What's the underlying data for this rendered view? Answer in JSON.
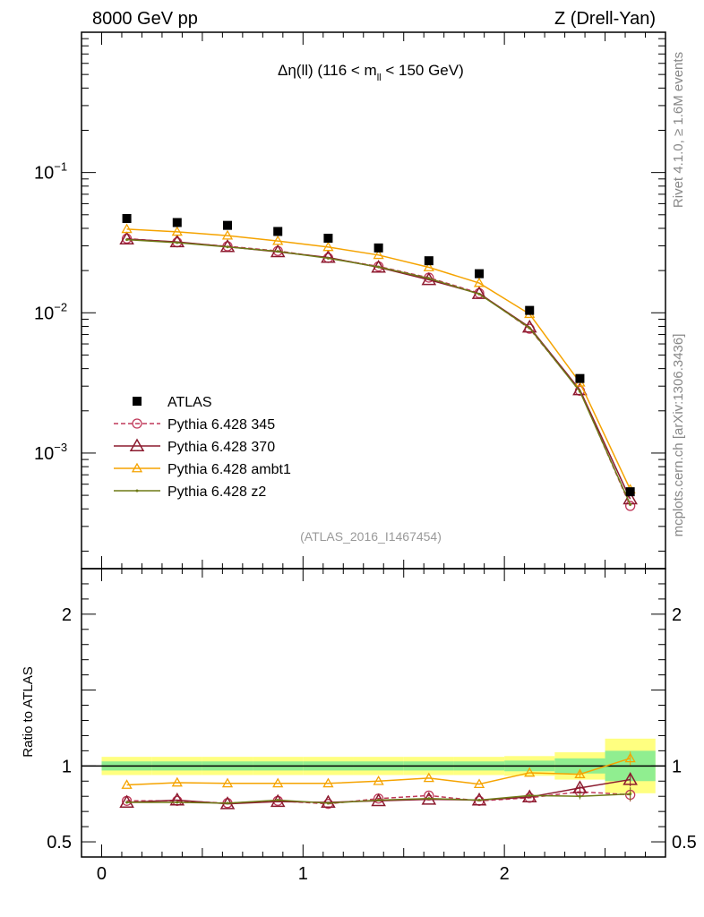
{
  "header": {
    "left": "8000 GeV pp",
    "right": "Z (Drell-Yan)"
  },
  "side_labels": {
    "top": "Rivet 4.1.0, ≥ 1.6M events",
    "bottom": "mcplots.cern.ch [arXiv:1306.3436]"
  },
  "chart_data": {
    "type": "line",
    "title_main": "Δη(ll) (116 < m",
    "title_sub": "ll",
    "title_end": " < 150 GeV)",
    "analysis_id": "(ATLAS_2016_I1467454)",
    "x": [
      0.125,
      0.375,
      0.625,
      0.875,
      1.125,
      1.375,
      1.625,
      1.875,
      2.125,
      2.375,
      2.625
    ],
    "xlim": [
      -0.1,
      2.8
    ],
    "x_ticks": [
      "0",
      "1",
      "2"
    ],
    "main_panel": {
      "yscale": "log",
      "ylim": [
        0.00015,
        1.0
      ],
      "y_tick_labels": [
        {
          "base": "10",
          "exp": "−1"
        },
        {
          "base": "10",
          "exp": "−2"
        },
        {
          "base": "10",
          "exp": "−3"
        }
      ]
    },
    "ratio_panel": {
      "ylabel": "Ratio to ATLAS",
      "ylim": [
        0.4,
        2.3
      ],
      "y_tick_labels": [
        "0.5",
        "1",
        "2"
      ]
    },
    "data": {
      "name": "ATLAS",
      "values": [
        0.047,
        0.044,
        0.042,
        0.038,
        0.034,
        0.029,
        0.0235,
        0.019,
        0.0104,
        0.0034,
        0.00053
      ],
      "band_stat": [
        0.03,
        0.03,
        0.03,
        0.03,
        0.03,
        0.03,
        0.03,
        0.03,
        0.035,
        0.05,
        0.1
      ],
      "band_total": [
        0.06,
        0.06,
        0.06,
        0.06,
        0.06,
        0.06,
        0.06,
        0.06,
        0.065,
        0.09,
        0.18
      ]
    },
    "series": [
      {
        "name": "Pythia 6.428 345",
        "color": "#c0395a",
        "dash": "5,3",
        "marker": "circle",
        "values": [
          0.0338,
          0.0318,
          0.0298,
          0.0276,
          0.0246,
          0.0214,
          0.0178,
          0.0138,
          0.0077,
          0.00278,
          0.00042
        ],
        "ratio": [
          0.77,
          0.77,
          0.755,
          0.77,
          0.75,
          0.785,
          0.805,
          0.77,
          0.79,
          0.83,
          0.81
        ]
      },
      {
        "name": "Pythia 6.428 370",
        "color": "#8b1a2e",
        "dash": "",
        "marker": "triangle-large",
        "values": [
          0.0335,
          0.032,
          0.0296,
          0.0272,
          0.0248,
          0.0211,
          0.0172,
          0.0137,
          0.0079,
          0.00282,
          0.00047
        ],
        "ratio": [
          0.76,
          0.775,
          0.75,
          0.765,
          0.76,
          0.77,
          0.78,
          0.775,
          0.795,
          0.855,
          0.91
        ]
      },
      {
        "name": "Pythia 6.428 ambt1",
        "color": "#f5a300",
        "dash": "",
        "marker": "triangle-small",
        "values": [
          0.0395,
          0.0378,
          0.0355,
          0.0325,
          0.0294,
          0.0258,
          0.0211,
          0.0163,
          0.0098,
          0.00318,
          0.00055
        ],
        "ratio": [
          0.875,
          0.89,
          0.885,
          0.885,
          0.885,
          0.9,
          0.92,
          0.88,
          0.955,
          0.945,
          1.05
        ]
      },
      {
        "name": "Pythia 6.428 z2",
        "color": "#6e7a17",
        "dash": "",
        "marker": "dot",
        "values": [
          0.0332,
          0.0316,
          0.0295,
          0.0274,
          0.0245,
          0.0212,
          0.0176,
          0.0136,
          0.0078,
          0.00275,
          0.00043
        ],
        "ratio": [
          0.76,
          0.76,
          0.755,
          0.775,
          0.755,
          0.775,
          0.785,
          0.775,
          0.805,
          0.8,
          0.815
        ]
      }
    ]
  }
}
